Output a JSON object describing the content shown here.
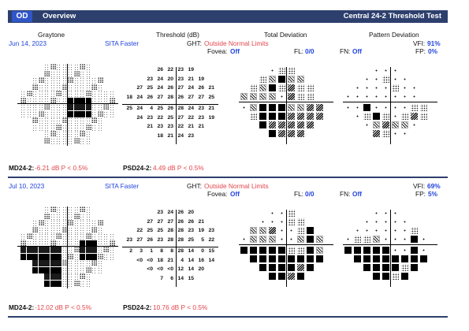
{
  "header": {
    "eye": "OD",
    "title": "Overview",
    "test": "Central 24-2 Threshold Test"
  },
  "columns": {
    "graytone": "Graytone",
    "threshold": "Threshold (dB)",
    "total": "Total Deviation",
    "pattern": "Pattern Deviation"
  },
  "labels": {
    "ght": "GHT:",
    "fovea": "Fovea:",
    "fl": "FL:",
    "fn": "FN:",
    "fp": "FP:",
    "vfi": "VFI:",
    "md": "MD24-2:",
    "psd": "PSD24-2:"
  },
  "visits": [
    {
      "date": "Jun 14, 2023",
      "strategy": "SITA Faster",
      "ght": "Outside Normal Limits",
      "fovea": "Off",
      "fl": "0/0",
      "fn": "Off",
      "fp": "0%",
      "vfi": "91%",
      "md": "-6.21 dB P < 0.5%",
      "psd": "4.49 dB P < 0.5%",
      "threshold_rows": [
        [
          "",
          "",
          "",
          "26",
          "22",
          "23",
          "19",
          "",
          "",
          ""
        ],
        [
          "",
          "",
          "23",
          "24",
          "20",
          "23",
          "21",
          "19",
          "",
          ""
        ],
        [
          "",
          "27",
          "25",
          "24",
          "26",
          "27",
          "24",
          "26",
          "21",
          ""
        ],
        [
          "18",
          "24",
          "26",
          "27",
          "28",
          "26",
          "27",
          "27",
          "25",
          ""
        ],
        [
          "25",
          "24",
          "4",
          "25",
          "26",
          "28",
          "24",
          "23",
          "21",
          ""
        ],
        [
          "",
          "24",
          "23",
          "22",
          "25",
          "27",
          "22",
          "23",
          "19",
          ""
        ],
        [
          "",
          "",
          "21",
          "23",
          "23",
          "22",
          "21",
          "21",
          "",
          ""
        ],
        [
          "",
          "",
          "",
          "18",
          "21",
          "24",
          "23",
          "",
          "",
          ""
        ]
      ],
      "total_rows": [
        [
          null,
          null,
          null,
          0,
          1,
          1,
          null,
          null,
          null,
          null
        ],
        [
          null,
          null,
          1,
          2,
          4,
          2,
          2,
          null,
          null,
          null
        ],
        [
          null,
          1,
          2,
          4,
          1,
          3,
          1,
          1,
          null,
          null
        ],
        [
          2,
          2,
          2,
          2,
          0,
          3,
          1,
          1,
          null,
          null
        ],
        [
          0,
          2,
          4,
          4,
          4,
          2,
          2,
          3,
          3,
          null
        ],
        [
          null,
          1,
          4,
          4,
          4,
          3,
          3,
          3,
          3,
          null
        ],
        [
          null,
          null,
          4,
          3,
          3,
          3,
          3,
          3,
          null,
          null
        ],
        [
          null,
          null,
          null,
          4,
          3,
          3,
          3,
          null,
          null,
          null
        ]
      ],
      "pattern_rows": [
        [
          null,
          null,
          null,
          0,
          0,
          0,
          null,
          null,
          null,
          null
        ],
        [
          null,
          null,
          0,
          0,
          1,
          0,
          0,
          null,
          null,
          null
        ],
        [
          null,
          0,
          0,
          0,
          0,
          1,
          0,
          0,
          null,
          null
        ],
        [
          0,
          0,
          0,
          0,
          0,
          0,
          0,
          0,
          null,
          null
        ],
        [
          0,
          0,
          4,
          0,
          0,
          0,
          0,
          1,
          1,
          null
        ],
        [
          null,
          0,
          1,
          4,
          1,
          0,
          1,
          3,
          1,
          null
        ],
        [
          null,
          null,
          0,
          2,
          3,
          2,
          2,
          0,
          null,
          null
        ],
        [
          null,
          null,
          null,
          3,
          1,
          0,
          0,
          null,
          null,
          null
        ]
      ],
      "graytone_dark": [
        [
          3,
          5
        ],
        [
          4,
          5
        ],
        [
          3,
          6
        ],
        [
          4,
          6
        ]
      ]
    },
    {
      "date": "Jul 10, 2023",
      "strategy": "SITA Faster",
      "ght": "Outside Normal Limits",
      "fovea": "Off",
      "fl": "0/0",
      "fn": "Off",
      "fp": "5%",
      "vfi": "69%",
      "md": "-12.02 dB P < 0.5%",
      "psd": "10.76 dB P < 0.5%",
      "threshold_rows": [
        [
          "",
          "",
          "",
          "23",
          "24",
          "26",
          "20",
          "",
          "",
          ""
        ],
        [
          "",
          "",
          "27",
          "27",
          "27",
          "26",
          "26",
          "21",
          "",
          ""
        ],
        [
          "",
          "22",
          "25",
          "25",
          "28",
          "28",
          "23",
          "19",
          "23",
          ""
        ],
        [
          "23",
          "27",
          "26",
          "23",
          "28",
          "28",
          "25",
          "5",
          "22",
          ""
        ],
        [
          "2",
          "3",
          "1",
          "8",
          "8",
          "28",
          "14",
          "0",
          "15",
          ""
        ],
        [
          "",
          "<0",
          "<0",
          "18",
          "21",
          "4",
          "14",
          "16",
          "14",
          ""
        ],
        [
          "",
          "",
          "<0",
          "<0",
          "<0",
          "12",
          "14",
          "20",
          "",
          ""
        ],
        [
          "",
          "",
          "",
          "7",
          "6",
          "14",
          "15",
          "",
          "",
          ""
        ]
      ],
      "total_rows": [
        [
          null,
          null,
          null,
          0,
          0,
          1,
          null,
          null,
          null,
          null
        ],
        [
          null,
          null,
          0,
          0,
          0,
          1,
          1,
          null,
          null,
          null
        ],
        [
          null,
          2,
          2,
          3,
          0,
          0,
          1,
          4,
          null,
          null
        ],
        [
          0,
          2,
          2,
          2,
          0,
          0,
          2,
          4,
          2,
          null
        ],
        [
          4,
          4,
          4,
          4,
          4,
          1,
          1,
          4,
          2,
          null
        ],
        [
          null,
          4,
          4,
          4,
          4,
          4,
          4,
          4,
          4,
          null
        ],
        [
          null,
          null,
          4,
          4,
          4,
          4,
          3,
          4,
          null,
          null
        ],
        [
          null,
          null,
          null,
          4,
          4,
          3,
          4,
          null,
          null,
          null
        ]
      ],
      "pattern_rows": [
        [
          null,
          null,
          null,
          0,
          0,
          0,
          null,
          null,
          null,
          null
        ],
        [
          null,
          null,
          0,
          0,
          0,
          0,
          0,
          null,
          null,
          null
        ],
        [
          null,
          0,
          0,
          0,
          0,
          0,
          0,
          1,
          null,
          null
        ],
        [
          0,
          1,
          1,
          2,
          0,
          0,
          0,
          4,
          0,
          null
        ],
        [
          4,
          4,
          4,
          4,
          4,
          0,
          0,
          4,
          0,
          null
        ],
        [
          null,
          4,
          4,
          4,
          4,
          4,
          4,
          4,
          4,
          null
        ],
        [
          null,
          null,
          4,
          4,
          4,
          4,
          1,
          4,
          null,
          null
        ],
        [
          null,
          null,
          null,
          4,
          4,
          1,
          4,
          null,
          null,
          null
        ]
      ],
      "graytone_dark": [
        [
          4,
          0
        ],
        [
          4,
          1
        ],
        [
          4,
          2
        ],
        [
          4,
          3
        ],
        [
          5,
          0
        ],
        [
          5,
          1
        ],
        [
          5,
          2
        ],
        [
          5,
          3
        ],
        [
          6,
          1
        ],
        [
          6,
          2
        ],
        [
          6,
          3
        ],
        [
          7,
          2
        ],
        [
          7,
          3
        ],
        [
          3,
          6
        ],
        [
          3,
          7
        ],
        [
          4,
          6
        ],
        [
          4,
          7
        ]
      ]
    }
  ]
}
